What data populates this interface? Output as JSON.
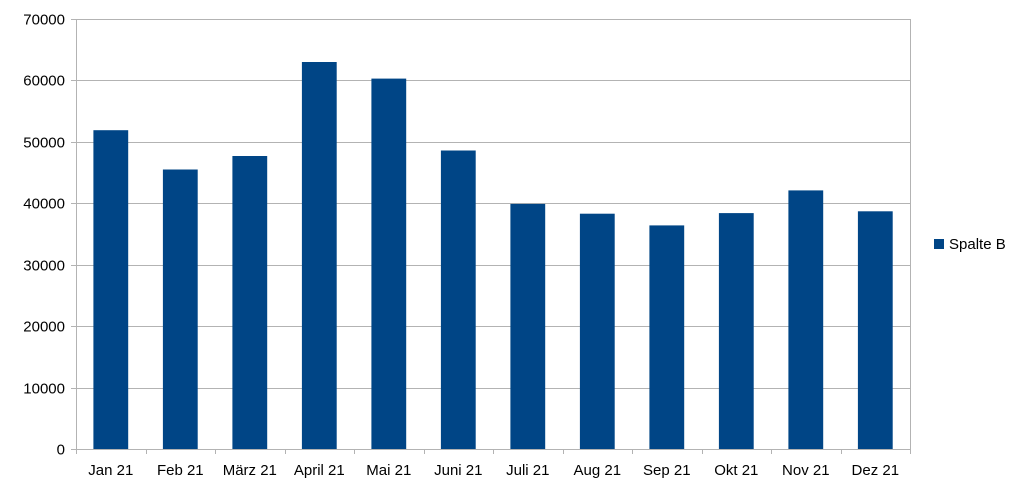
{
  "chart_data": {
    "type": "bar",
    "title": "",
    "xlabel": "",
    "ylabel": "",
    "categories": [
      "Jan 21",
      "Feb 21",
      "März 21",
      "April 21",
      "Mai 21",
      "Juni 21",
      "Juli 21",
      "Aug 21",
      "Sep 21",
      "Okt 21",
      "Nov 21",
      "Dez 21"
    ],
    "series": [
      {
        "name": "Spalte B",
        "color": "#004586",
        "values": [
          51900,
          45500,
          47700,
          63000,
          60300,
          48600,
          39900,
          38300,
          36400,
          38400,
          42100,
          38700
        ]
      }
    ],
    "ylim": [
      0,
      70000
    ],
    "yticks": [
      0,
      10000,
      20000,
      30000,
      40000,
      50000,
      60000,
      70000
    ],
    "grid": true,
    "legend": "right"
  }
}
